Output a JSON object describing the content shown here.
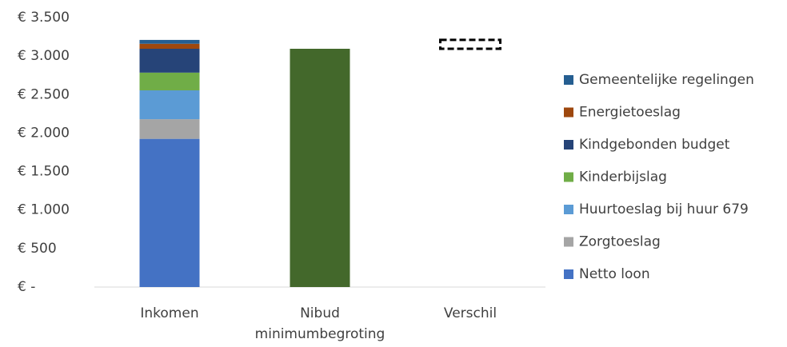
{
  "chart_data": {
    "type": "stacked_bar",
    "categories": [
      "Inkomen",
      "Nibud minimumbegroting",
      "Verschil"
    ],
    "series": [
      {
        "name": "Netto loon",
        "color": "#4472c4",
        "values": [
          1925,
          null,
          null
        ]
      },
      {
        "name": "Zorgtoeslag",
        "color": "#a5a5a5",
        "values": [
          255,
          null,
          null
        ]
      },
      {
        "name": "Huurtoeslag bij huur 679",
        "color": "#5b9bd5",
        "values": [
          375,
          null,
          null
        ]
      },
      {
        "name": "Kinderbijslag",
        "color": "#70ad47",
        "values": [
          230,
          null,
          null
        ]
      },
      {
        "name": "Kindgebonden budget",
        "color": "#264478",
        "values": [
          310,
          null,
          null
        ]
      },
      {
        "name": "Energietoeslag",
        "color": "#9e480e",
        "values": [
          65,
          null,
          null
        ]
      },
      {
        "name": "Gemeentelijke regelingen",
        "color": "#255e91",
        "values": [
          50,
          null,
          null
        ]
      },
      {
        "color": "#43682b",
        "values": [
          null,
          3095,
          null
        ]
      },
      {
        "color": "none",
        "values": [
          null,
          null,
          3095
        ]
      },
      {
        "color": "none",
        "dashed": true,
        "values": [
          null,
          null,
          115
        ]
      }
    ],
    "ylim": [
      0,
      3500
    ],
    "yticks": [
      {
        "value": 0,
        "label": "€ -"
      },
      {
        "value": 500,
        "label": "€ 500"
      },
      {
        "value": 1000,
        "label": "€ 1.000"
      },
      {
        "value": 1500,
        "label": "€ 1.500"
      },
      {
        "value": 2000,
        "label": "€ 2.000"
      },
      {
        "value": 2500,
        "label": "€ 2.500"
      },
      {
        "value": 3000,
        "label": "€ 3.000"
      },
      {
        "value": 3500,
        "label": "€ 3.500"
      }
    ],
    "legend": "right"
  }
}
